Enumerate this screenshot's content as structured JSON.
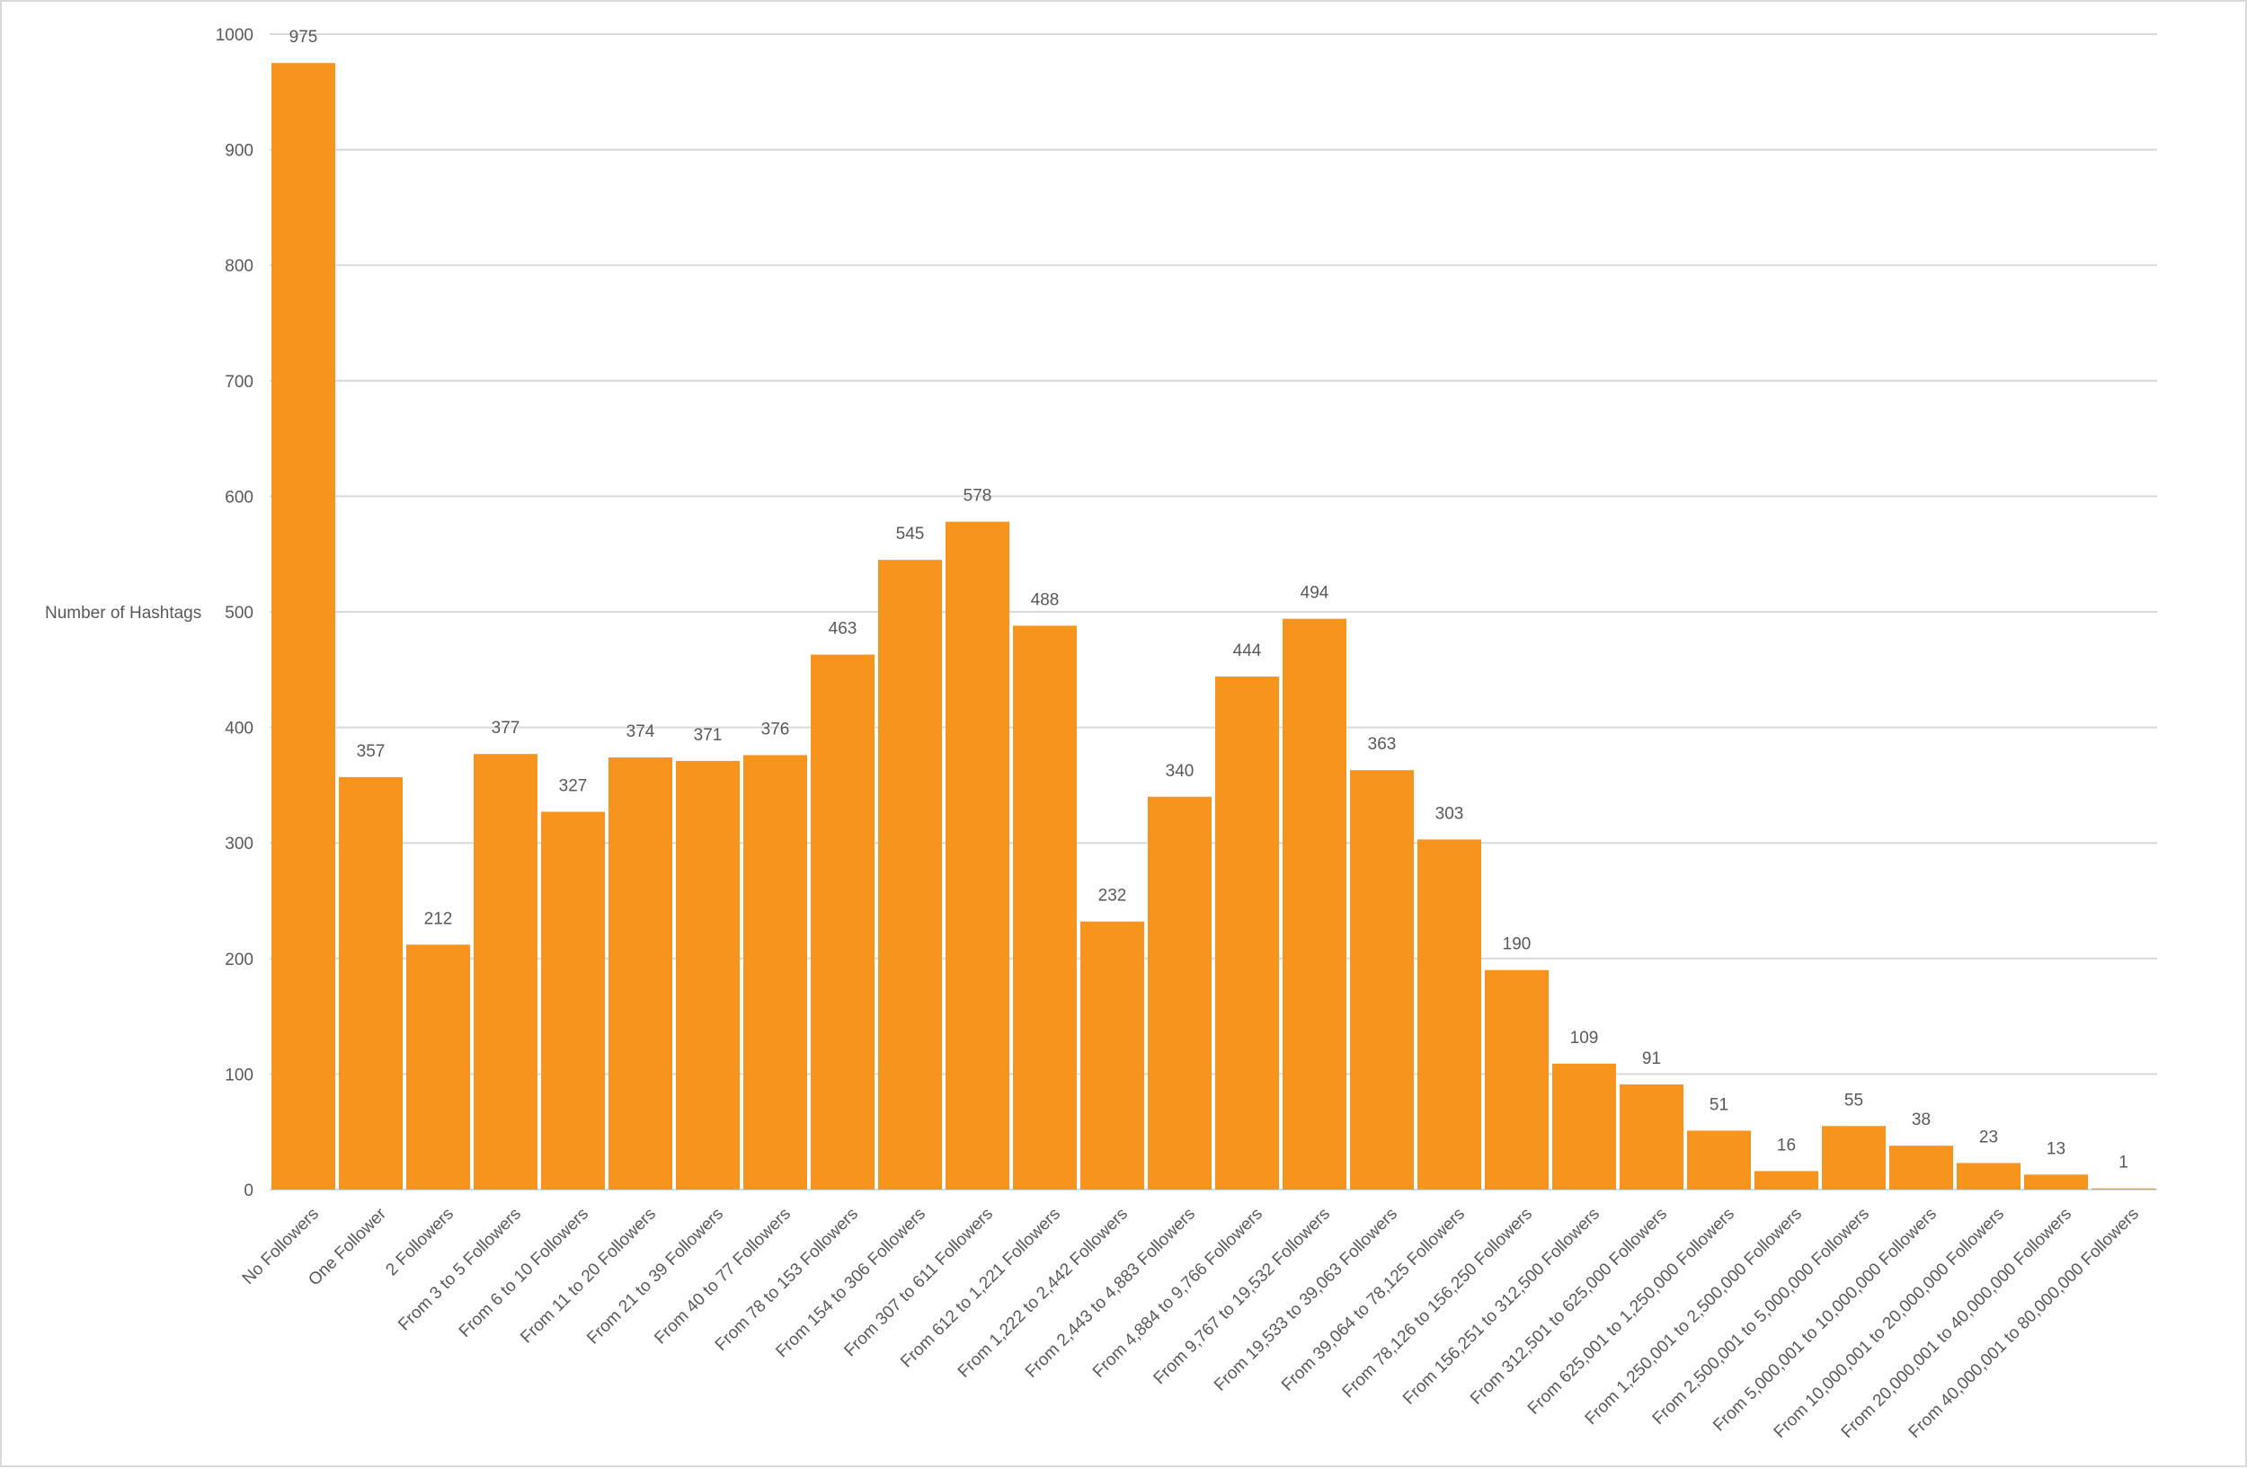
{
  "chart_data": {
    "type": "bar",
    "ylabel": "Number of Hashtags",
    "xlabel": "",
    "ylim": [
      0,
      1000
    ],
    "yticks": [
      0,
      100,
      200,
      300,
      400,
      500,
      600,
      700,
      800,
      900,
      1000
    ],
    "grid": true,
    "bar_color": "#F7941E",
    "categories": [
      "No Followers",
      "One Follower",
      "2 Followers",
      "From 3 to 5 Followers",
      "From 6 to 10 Followers",
      "From 11 to 20 Followers",
      "From 21 to 39 Followers",
      "From 40 to 77 Followers",
      "From 78 to 153 Followers",
      "From 154 to 306 Followers",
      "From 307 to 611 Followers",
      "From 612 to 1,221 Followers",
      "From 1,222 to 2,442 Followers",
      "From 2,443 to 4,883 Followers",
      "From 4,884 to 9,766 Followers",
      "From 9,767 to 19,532 Followers",
      "From 19,533 to 39,063 Followers",
      "From 39,064 to 78,125 Followers",
      "From 78,126 to 156,250 Followers",
      "From 156,251 to 312,500 Followers",
      "From 312,501 to 625,000 Followers",
      "From 625,001 to 1,250,000 Followers",
      "From 1,250,001 to 2,500,000 Followers",
      "From 2,500,001 to 5,000,000 Followers",
      "From 5,000,001 to 10,000,000 Followers",
      "From 10,000,001 to 20,000,000 Followers",
      "From 20,000,001 to 40,000,000 Followers",
      "From 40,000,001 to 80,000,000 Followers"
    ],
    "values": [
      975,
      357,
      212,
      377,
      327,
      374,
      371,
      376,
      463,
      545,
      578,
      488,
      232,
      340,
      444,
      494,
      363,
      303,
      190,
      109,
      91,
      51,
      16,
      55,
      38,
      23,
      13,
      1
    ]
  }
}
